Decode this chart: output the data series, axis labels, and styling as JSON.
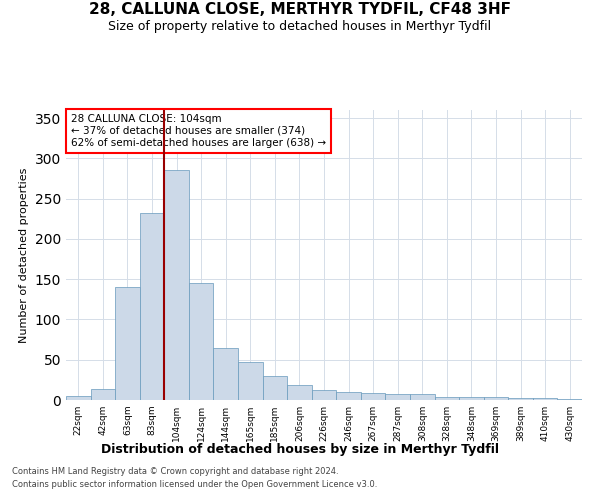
{
  "title": "28, CALLUNA CLOSE, MERTHYR TYDFIL, CF48 3HF",
  "subtitle": "Size of property relative to detached houses in Merthyr Tydfil",
  "xlabel": "Distribution of detached houses by size in Merthyr Tydfil",
  "ylabel": "Number of detached properties",
  "footnote1": "Contains HM Land Registry data © Crown copyright and database right 2024.",
  "footnote2": "Contains public sector information licensed under the Open Government Licence v3.0.",
  "annotation_title": "28 CALLUNA CLOSE: 104sqm",
  "annotation_line1": "← 37% of detached houses are smaller (374)",
  "annotation_line2": "62% of semi-detached houses are larger (638) →",
  "bar_labels": [
    "22sqm",
    "42sqm",
    "63sqm",
    "83sqm",
    "104sqm",
    "124sqm",
    "144sqm",
    "165sqm",
    "185sqm",
    "206sqm",
    "226sqm",
    "246sqm",
    "267sqm",
    "287sqm",
    "308sqm",
    "328sqm",
    "348sqm",
    "369sqm",
    "389sqm",
    "410sqm",
    "430sqm"
  ],
  "bar_values": [
    5,
    14,
    140,
    232,
    285,
    145,
    65,
    47,
    30,
    19,
    13,
    10,
    9,
    8,
    7,
    4,
    4,
    4,
    3,
    2,
    1
  ],
  "bar_color": "#ccd9e8",
  "bar_edge_color": "#6699bb",
  "vline_color": "#990000",
  "background_color": "#ffffff",
  "grid_color": "#d5dde8",
  "ylim": [
    0,
    360
  ],
  "yticks": [
    0,
    50,
    100,
    150,
    200,
    250,
    300,
    350
  ]
}
